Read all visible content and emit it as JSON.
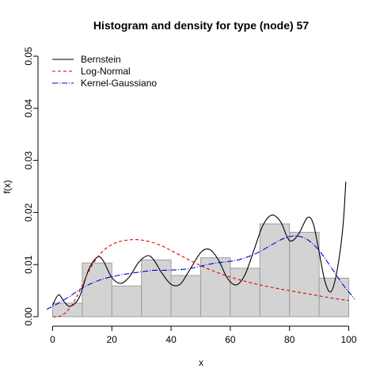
{
  "chart_data": {
    "type": "histogram",
    "title": "Histogram and density for type (node) 57",
    "xlabel": "x",
    "ylabel": "f(x)",
    "xlim": [
      -2,
      102
    ],
    "ylim": [
      0,
      0.05
    ],
    "xticks": [
      0,
      20,
      40,
      60,
      80,
      100
    ],
    "yticks": [
      0.0,
      0.01,
      0.02,
      0.03,
      0.04,
      0.05
    ],
    "ytick_labels": [
      "0.00",
      "0.01",
      "0.02",
      "0.03",
      "0.04",
      "0.05"
    ],
    "bars": {
      "fill": "#d3d3d3",
      "edge": "#9e9e9e",
      "bins": [
        {
          "x0": 0,
          "x1": 10,
          "y": 0.0026
        },
        {
          "x0": 10,
          "x1": 20,
          "y": 0.0103
        },
        {
          "x0": 20,
          "x1": 30,
          "y": 0.0059
        },
        {
          "x0": 30,
          "x1": 40,
          "y": 0.0109
        },
        {
          "x0": 40,
          "x1": 50,
          "y": 0.0079
        },
        {
          "x0": 50,
          "x1": 60,
          "y": 0.0113
        },
        {
          "x0": 60,
          "x1": 70,
          "y": 0.0093
        },
        {
          "x0": 70,
          "x1": 80,
          "y": 0.0178
        },
        {
          "x0": 80,
          "x1": 90,
          "y": 0.0162
        },
        {
          "x0": 90,
          "x1": 100,
          "y": 0.0074
        }
      ]
    },
    "series": [
      {
        "name": "Bernstein",
        "color": "#000000",
        "dash": "",
        "x": [
          0,
          2,
          4,
          6,
          9,
          12,
          15,
          17,
          20,
          23,
          26,
          29,
          32,
          34,
          37,
          40,
          43,
          46,
          50,
          53,
          56,
          59,
          62,
          65,
          68,
          71,
          74,
          77,
          80,
          83,
          86,
          88,
          90,
          92,
          94,
          96,
          98,
          99
        ],
        "y": [
          0.0022,
          0.0042,
          0.0028,
          0.002,
          0.0037,
          0.0088,
          0.0114,
          0.0108,
          0.0075,
          0.0064,
          0.0077,
          0.0104,
          0.0117,
          0.011,
          0.0083,
          0.0062,
          0.0062,
          0.0087,
          0.0123,
          0.0129,
          0.0109,
          0.0074,
          0.0061,
          0.0081,
          0.0128,
          0.0175,
          0.0195,
          0.0182,
          0.0146,
          0.0158,
          0.019,
          0.0179,
          0.0124,
          0.0067,
          0.0048,
          0.0087,
          0.017,
          0.0259
        ]
      },
      {
        "name": "Log-Normal",
        "color": "#dd0000",
        "dash": "4,3",
        "x": [
          0,
          2,
          4,
          6,
          8,
          10,
          12,
          15,
          18,
          21,
          24,
          28,
          32,
          36,
          40,
          45,
          50,
          55,
          60,
          65,
          70,
          75,
          80,
          85,
          90,
          95,
          100
        ],
        "y": [
          0.0,
          0.0,
          0.0006,
          0.0018,
          0.0037,
          0.006,
          0.0085,
          0.0113,
          0.0131,
          0.0141,
          0.0146,
          0.0148,
          0.0145,
          0.0138,
          0.0127,
          0.0112,
          0.0098,
          0.0086,
          0.0076,
          0.0068,
          0.0061,
          0.0055,
          0.005,
          0.0045,
          0.004,
          0.0035,
          0.0031
        ]
      },
      {
        "name": "Kernel-Gaussiano",
        "color": "#0000dd",
        "dash": "7,2,1,2",
        "x": [
          -2,
          2,
          6,
          10,
          14,
          18,
          22,
          26,
          30,
          34,
          38,
          42,
          46,
          50,
          54,
          58,
          62,
          66,
          70,
          74,
          78,
          82,
          86,
          90,
          94,
          98,
          102
        ],
        "y": [
          0.0014,
          0.0026,
          0.004,
          0.0055,
          0.0066,
          0.0074,
          0.0079,
          0.0083,
          0.0086,
          0.0089,
          0.0089,
          0.009,
          0.0092,
          0.0097,
          0.0102,
          0.0105,
          0.0108,
          0.0115,
          0.0125,
          0.0138,
          0.015,
          0.0155,
          0.0148,
          0.0127,
          0.0095,
          0.0062,
          0.0034
        ]
      }
    ],
    "legend": {
      "placement": "top-left",
      "items": [
        "Bernstein",
        "Log-Normal",
        "Kernel-Gaussiano"
      ]
    }
  }
}
